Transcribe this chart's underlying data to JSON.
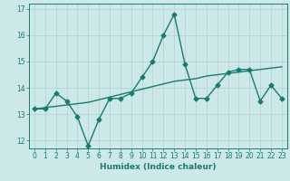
{
  "x": [
    0,
    1,
    2,
    3,
    4,
    5,
    6,
    7,
    8,
    9,
    10,
    11,
    12,
    13,
    14,
    15,
    16,
    17,
    18,
    19,
    20,
    21,
    22,
    23
  ],
  "y_line": [
    13.2,
    13.2,
    13.8,
    13.5,
    12.9,
    11.8,
    12.8,
    13.6,
    13.6,
    13.8,
    14.4,
    15.0,
    16.0,
    16.8,
    14.9,
    13.6,
    13.6,
    14.1,
    14.6,
    14.7,
    14.7,
    13.5,
    14.1,
    13.6
  ],
  "y_trend": [
    13.2,
    13.25,
    13.3,
    13.35,
    13.4,
    13.45,
    13.55,
    13.65,
    13.75,
    13.85,
    13.95,
    14.05,
    14.15,
    14.25,
    14.3,
    14.35,
    14.45,
    14.5,
    14.55,
    14.6,
    14.65,
    14.7,
    14.75,
    14.8
  ],
  "line_color": "#1a7a6e",
  "bg_color": "#cde8e8",
  "grid_color": "#b0d0d0",
  "xlabel": "Humidex (Indice chaleur)",
  "ylim": [
    11.7,
    17.2
  ],
  "yticks": [
    12,
    13,
    14,
    15,
    16,
    17
  ],
  "xlim": [
    -0.5,
    23.5
  ],
  "xticks": [
    0,
    1,
    2,
    3,
    4,
    5,
    6,
    7,
    8,
    9,
    10,
    11,
    12,
    13,
    14,
    15,
    16,
    17,
    18,
    19,
    20,
    21,
    22,
    23
  ],
  "marker": "D",
  "markersize": 2.5,
  "linewidth": 1.0,
  "label_fontsize": 6.5,
  "tick_fontsize": 5.5
}
